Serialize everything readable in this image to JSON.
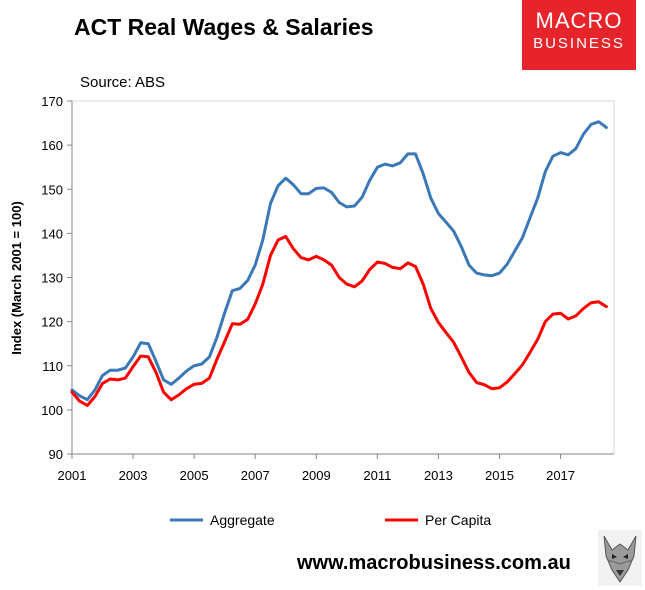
{
  "header": {
    "title": "ACT Real Wages & Salaries",
    "source": "Source: ABS"
  },
  "logo": {
    "line1": "MACRO",
    "line2": "BUSINESS",
    "color": "#e8242b"
  },
  "footer": {
    "website": "www.macrobusiness.com.au"
  },
  "colors": {
    "aggregate": "#3b78b8",
    "per_capita": "#ff0000"
  },
  "chart_data": {
    "type": "line",
    "title": "ACT Real Wages & Salaries",
    "ylabel": "Index (March 2001 = 100)",
    "xlabel": "",
    "xlim": [
      2001,
      2018.75
    ],
    "ylim": [
      90,
      170
    ],
    "x_ticks": [
      2001,
      2003,
      2005,
      2007,
      2009,
      2011,
      2013,
      2015,
      2017
    ],
    "y_ticks": [
      90,
      100,
      110,
      120,
      130,
      140,
      150,
      160,
      170
    ],
    "grid": false,
    "legend_position": "bottom",
    "x": [
      2001.0,
      2001.25,
      2001.5,
      2001.75,
      2002.0,
      2002.25,
      2002.5,
      2002.75,
      2003.0,
      2003.25,
      2003.5,
      2003.75,
      2004.0,
      2004.25,
      2004.5,
      2004.75,
      2005.0,
      2005.25,
      2005.5,
      2005.75,
      2006.0,
      2006.25,
      2006.5,
      2006.75,
      2007.0,
      2007.25,
      2007.5,
      2007.75,
      2008.0,
      2008.25,
      2008.5,
      2008.75,
      2009.0,
      2009.25,
      2009.5,
      2009.75,
      2010.0,
      2010.25,
      2010.5,
      2010.75,
      2011.0,
      2011.25,
      2011.5,
      2011.75,
      2012.0,
      2012.25,
      2012.5,
      2012.75,
      2013.0,
      2013.25,
      2013.5,
      2013.75,
      2014.0,
      2014.25,
      2014.5,
      2014.75,
      2015.0,
      2015.25,
      2015.5,
      2015.75,
      2016.0,
      2016.25,
      2016.5,
      2016.75,
      2017.0,
      2017.25,
      2017.5,
      2017.75,
      2018.0,
      2018.25,
      2018.5
    ],
    "series": [
      {
        "name": "Aggregate",
        "values": [
          104.5,
          103.2,
          102.3,
          104.5,
          107.8,
          109.0,
          109.0,
          109.5,
          112.0,
          115.2,
          115.0,
          111.0,
          106.8,
          105.8,
          107.2,
          108.8,
          110.0,
          110.4,
          112.0,
          116.5,
          122.0,
          127.0,
          127.5,
          129.3,
          132.8,
          138.5,
          146.8,
          150.8,
          152.5,
          151.0,
          149.0,
          149.0,
          150.2,
          150.3,
          149.3,
          147.0,
          146.0,
          146.2,
          148.2,
          152.0,
          155.0,
          155.7,
          155.3,
          156.0,
          158.0,
          158.0,
          153.5,
          148.0,
          144.5,
          142.5,
          140.5,
          137.0,
          132.8,
          131.0,
          130.6,
          130.4,
          131.0,
          133.0,
          136.0,
          139.0,
          143.5,
          148.0,
          154.0,
          157.5,
          158.3,
          157.8,
          159.2,
          162.5,
          164.7,
          165.3,
          164.0
        ]
      },
      {
        "name": "Per Capita",
        "values": [
          104.0,
          102.0,
          101.0,
          103.0,
          106.0,
          107.0,
          106.8,
          107.2,
          109.8,
          112.2,
          112.0,
          108.5,
          104.0,
          102.3,
          103.4,
          104.8,
          105.8,
          106.0,
          107.2,
          111.5,
          115.5,
          119.5,
          119.4,
          120.5,
          124.0,
          128.5,
          135.0,
          138.5,
          139.3,
          136.5,
          134.5,
          134.0,
          134.8,
          134.0,
          132.8,
          130.0,
          128.5,
          127.9,
          129.2,
          131.8,
          133.5,
          133.2,
          132.3,
          132.0,
          133.3,
          132.5,
          128.5,
          123.0,
          119.8,
          117.5,
          115.3,
          112.0,
          108.5,
          106.2,
          105.7,
          104.8,
          105.0,
          106.3,
          108.2,
          110.2,
          113.0,
          116.0,
          120.0,
          121.7,
          121.9,
          120.6,
          121.3,
          123.0,
          124.3,
          124.5,
          123.4
        ]
      }
    ]
  }
}
